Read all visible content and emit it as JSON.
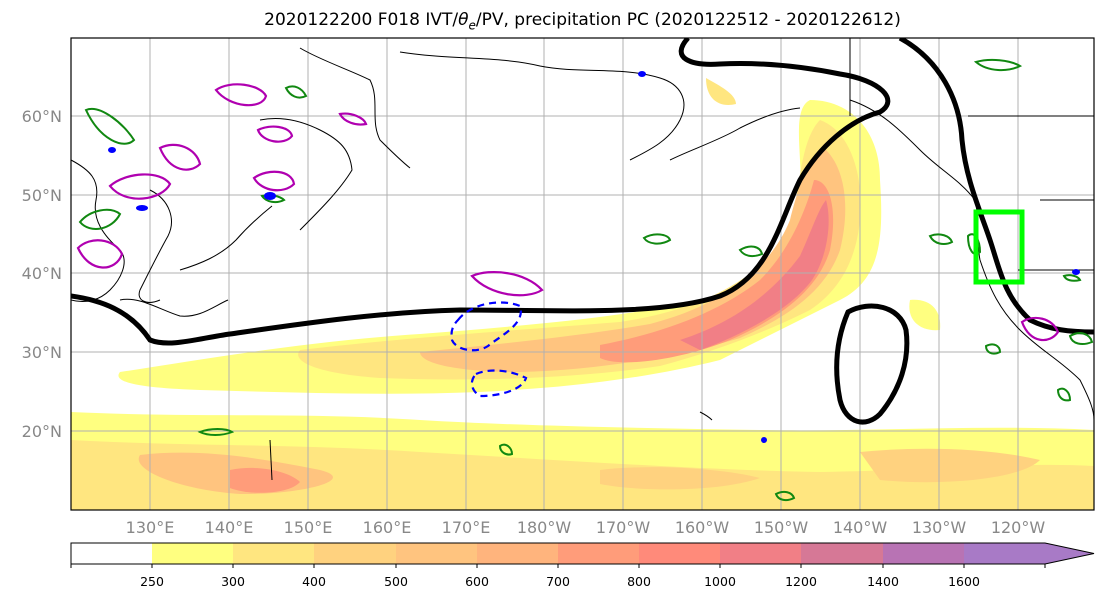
{
  "title": {
    "main_prefix": "2020122200 F018 IVT/",
    "theta": "θ",
    "theta_sub": "e",
    "main_suffix": "/PV, precipitation PC (2020122512 - 2020122612)"
  },
  "map": {
    "lat_labels": [
      "60°N",
      "50°N",
      "40°N",
      "30°N",
      "20°N"
    ],
    "lon_labels": [
      "130°E",
      "140°E",
      "150°E",
      "160°E",
      "170°E",
      "180°W",
      "170°W",
      "160°W",
      "150°W",
      "140°W",
      "130°W",
      "120°W"
    ],
    "target_box_color": "#00ff00",
    "contour_color": "#000000",
    "theta_e_colors": {
      "positive": "#b000b0",
      "green": "#118811",
      "negative_dashed": "#0000ff"
    }
  },
  "colorbar": {
    "labels": [
      "250",
      "300",
      "400",
      "500",
      "600",
      "700",
      "800",
      "1000",
      "1200",
      "1400",
      "1600"
    ],
    "colors": [
      "#ffffff",
      "#ffff80",
      "#ffe680",
      "#ffd27f",
      "#ffc47f",
      "#ffb47d",
      "#ff9c7a",
      "#ff8a7a",
      "#f17f86",
      "#d67896",
      "#b873b4",
      "#a87ac6"
    ]
  }
}
